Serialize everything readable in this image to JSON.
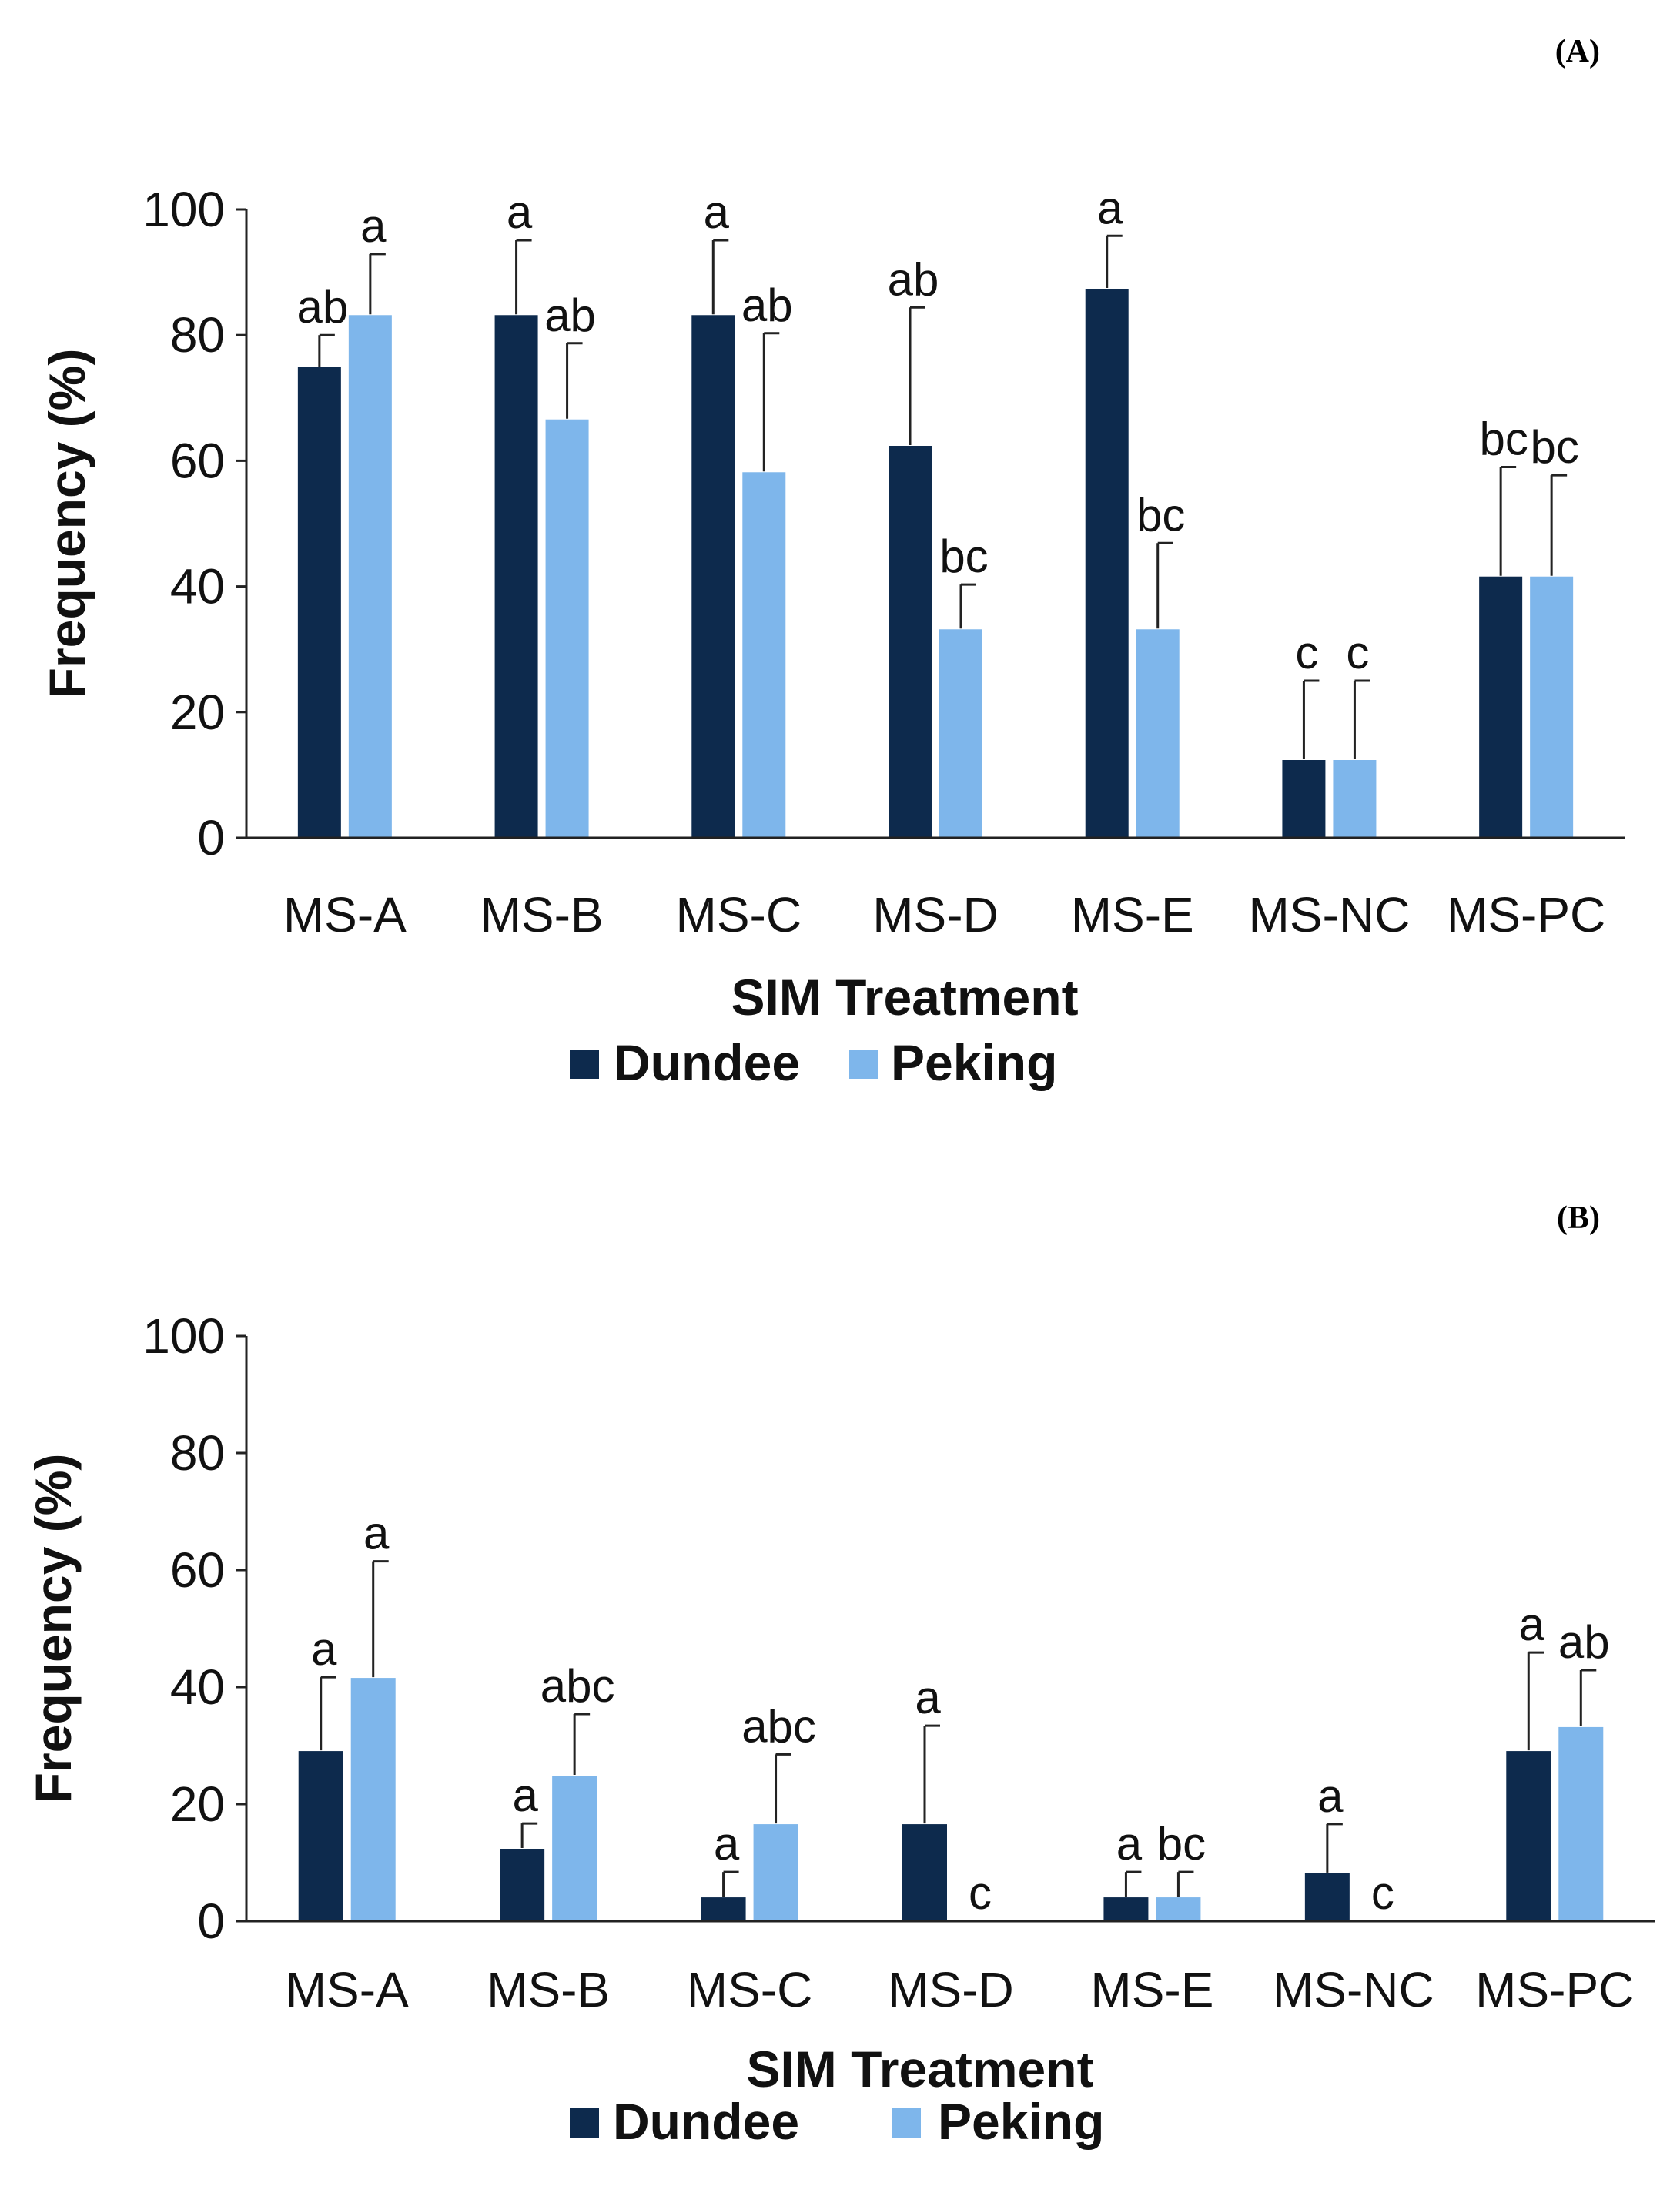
{
  "chart_data": [
    {
      "type": "bar",
      "panel_label": "(A)",
      "categories": [
        "MS-A",
        "MS-B",
        "MS-C",
        "MS-D",
        "MS-E",
        "MS-NC",
        "MS-PC"
      ],
      "xlabel": "SIM Treatment",
      "ylabel": "Frequency (%)",
      "ylim": [
        0,
        100
      ],
      "yticks": [
        "0",
        "20",
        "40",
        "60",
        "80",
        "100"
      ],
      "legend_position": "bottom",
      "series": [
        {
          "name": "Dundee",
          "color": "#0d2a4d",
          "values": [
            75,
            83.3,
            83.3,
            62.5,
            87.5,
            12.5,
            41.7
          ],
          "errors": [
            5,
            11.8,
            11.8,
            21.9,
            8.3,
            12.5,
            17.3
          ],
          "labels": [
            "ab",
            "a",
            "a",
            "ab",
            "a",
            "c",
            "bc"
          ]
        },
        {
          "name": "Peking",
          "color": "#7eb6eb",
          "values": [
            83.3,
            66.7,
            58.3,
            33.3,
            33.3,
            12.5,
            41.7
          ],
          "errors": [
            9.6,
            12,
            22,
            7,
            13.6,
            12.5,
            16
          ],
          "labels": [
            "a",
            "ab",
            "ab",
            "bc",
            "bc",
            "c",
            "bc"
          ]
        }
      ]
    },
    {
      "type": "bar",
      "panel_label": "(B)",
      "categories": [
        "MS-A",
        "MS-B",
        "MS-C",
        "MS-D",
        "MS-E",
        "MS-NC",
        "MS-PC"
      ],
      "xlabel": "SIM Treatment",
      "ylabel": "Frequency (%)",
      "ylim": [
        0,
        100
      ],
      "yticks": [
        "0",
        "20",
        "40",
        "60",
        "80",
        "100"
      ],
      "legend_position": "bottom",
      "series": [
        {
          "name": "Dundee",
          "color": "#0d2a4d",
          "values": [
            29.2,
            12.5,
            4.2,
            16.7,
            4.2,
            8.3,
            29.2
          ],
          "errors": [
            12.5,
            4.2,
            4.2,
            16.7,
            4.2,
            8.3,
            16.7
          ],
          "labels": [
            "a",
            "a",
            "a",
            "a",
            "a",
            "a",
            "a"
          ]
        },
        {
          "name": "Peking",
          "color": "#7eb6eb",
          "values": [
            41.7,
            25,
            16.7,
            0,
            4.2,
            0,
            33.3
          ],
          "errors": [
            19.8,
            10.4,
            11.8,
            0,
            4.2,
            0,
            9.6
          ],
          "labels": [
            "a",
            "abc",
            "abc",
            "c",
            "bc",
            "c",
            "ab"
          ]
        }
      ]
    }
  ]
}
